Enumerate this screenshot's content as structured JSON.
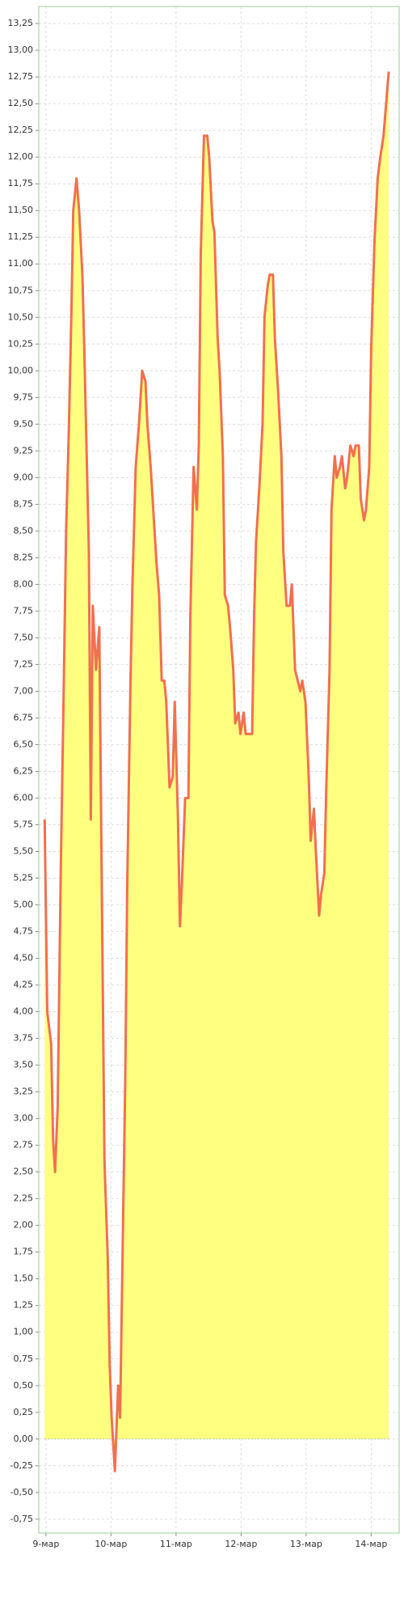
{
  "chart_data": {
    "type": "area",
    "x": [
      -0.02,
      0.02,
      0.08,
      0.11,
      0.14,
      0.18,
      0.23,
      0.27,
      0.31,
      0.35,
      0.39,
      0.42,
      0.47,
      0.51,
      0.56,
      0.59,
      0.66,
      0.69,
      0.72,
      0.77,
      0.82,
      0.85,
      0.9,
      0.95,
      0.98,
      1.01,
      1.06,
      1.11,
      1.14,
      1.17,
      1.22,
      1.25,
      1.3,
      1.33,
      1.38,
      1.43,
      1.48,
      1.53,
      1.56,
      1.61,
      1.66,
      1.7,
      1.74,
      1.78,
      1.82,
      1.85,
      1.9,
      1.95,
      1.98,
      2.03,
      2.06,
      2.09,
      2.14,
      2.19,
      2.22,
      2.27,
      2.32,
      2.35,
      2.38,
      2.43,
      2.48,
      2.51,
      2.56,
      2.59,
      2.64,
      2.67,
      2.72,
      2.75,
      2.8,
      2.83,
      2.88,
      2.91,
      2.96,
      2.99,
      3.04,
      3.07,
      3.12,
      3.17,
      3.2,
      3.23,
      3.28,
      3.33,
      3.36,
      3.41,
      3.44,
      3.49,
      3.52,
      3.57,
      3.62,
      3.65,
      3.7,
      3.75,
      3.78,
      3.83,
      3.87,
      3.91,
      3.94,
      3.99,
      4.04,
      4.07,
      4.12,
      4.15,
      4.2,
      4.23,
      4.28,
      4.31,
      4.36,
      4.39,
      4.44,
      4.47,
      4.52,
      4.55,
      4.6,
      4.63,
      4.68,
      4.73,
      4.76,
      4.81,
      4.84,
      4.89,
      4.92,
      4.97,
      5.0,
      5.05,
      5.1,
      5.14,
      5.19,
      5.23,
      5.27
    ],
    "values": [
      5.8,
      4.0,
      3.7,
      2.8,
      2.5,
      3.1,
      5.4,
      6.9,
      8.5,
      9.4,
      10.5,
      11.5,
      11.8,
      11.5,
      10.9,
      10.2,
      8.3,
      5.8,
      7.8,
      7.2,
      7.6,
      5.7,
      2.6,
      1.7,
      0.7,
      0.2,
      -0.3,
      0.5,
      0.2,
      1.4,
      3.4,
      5.2,
      7.1,
      8.0,
      9.1,
      9.5,
      10.0,
      9.9,
      9.5,
      9.1,
      8.6,
      8.2,
      7.9,
      7.1,
      7.1,
      6.9,
      6.1,
      6.2,
      6.9,
      5.8,
      4.8,
      5.2,
      6.0,
      6.0,
      7.7,
      9.1,
      8.7,
      9.3,
      11.1,
      12.2,
      12.2,
      12.0,
      11.4,
      11.3,
      10.3,
      10.0,
      9.2,
      7.9,
      7.8,
      7.6,
      7.2,
      6.7,
      6.8,
      6.6,
      6.8,
      6.6,
      6.6,
      6.6,
      7.7,
      8.4,
      8.9,
      9.5,
      10.5,
      10.8,
      10.9,
      10.9,
      10.3,
      9.8,
      9.2,
      8.3,
      7.8,
      7.8,
      8.0,
      7.2,
      7.1,
      7.0,
      7.1,
      6.9,
      6.2,
      5.6,
      5.9,
      5.5,
      4.9,
      5.1,
      5.3,
      6.1,
      7.2,
      8.7,
      9.2,
      9.0,
      9.1,
      9.2,
      8.9,
      9.0,
      9.3,
      9.2,
      9.3,
      9.3,
      8.8,
      8.6,
      8.7,
      9.1,
      10.2,
      11.2,
      11.8,
      12.0,
      12.2,
      12.5,
      12.8
    ],
    "color": "#f07050",
    "fill": "#ffff80",
    "xlim": [
      -0.11,
      5.43
    ],
    "xticks": [
      {
        "value": 0,
        "label": "9-мар"
      },
      {
        "value": 1,
        "label": "10-мар"
      },
      {
        "value": 2,
        "label": "11-мар"
      },
      {
        "value": 3,
        "label": "12-мар"
      },
      {
        "value": 4,
        "label": "13-мар"
      },
      {
        "value": 5,
        "label": "14-мар"
      }
    ],
    "ylim": [
      -0.88,
      13.41
    ],
    "yticks": [
      {
        "value": -0.75,
        "label": "-0,75"
      },
      {
        "value": -0.5,
        "label": "-0,50"
      },
      {
        "value": -0.25,
        "label": "-0,25"
      },
      {
        "value": 0,
        "label": "0,00"
      },
      {
        "value": 0.25,
        "label": "0,25"
      },
      {
        "value": 0.5,
        "label": "0,50"
      },
      {
        "value": 0.75,
        "label": "0,75"
      },
      {
        "value": 1,
        "label": "1,00"
      },
      {
        "value": 1.25,
        "label": "1,25"
      },
      {
        "value": 1.5,
        "label": "1,50"
      },
      {
        "value": 1.75,
        "label": "1,75"
      },
      {
        "value": 2,
        "label": "2,00"
      },
      {
        "value": 2.25,
        "label": "2,25"
      },
      {
        "value": 2.5,
        "label": "2,50"
      },
      {
        "value": 2.75,
        "label": "2,75"
      },
      {
        "value": 3,
        "label": "3,00"
      },
      {
        "value": 3.25,
        "label": "3,25"
      },
      {
        "value": 3.5,
        "label": "3,50"
      },
      {
        "value": 3.75,
        "label": "3,75"
      },
      {
        "value": 4,
        "label": "4,00"
      },
      {
        "value": 4.25,
        "label": "4,25"
      },
      {
        "value": 4.5,
        "label": "4,50"
      },
      {
        "value": 4.75,
        "label": "4,75"
      },
      {
        "value": 5,
        "label": "5,00"
      },
      {
        "value": 5.25,
        "label": "5,25"
      },
      {
        "value": 5.5,
        "label": "5,50"
      },
      {
        "value": 5.75,
        "label": "5,75"
      },
      {
        "value": 6,
        "label": "6,00"
      },
      {
        "value": 6.25,
        "label": "6,25"
      },
      {
        "value": 6.5,
        "label": "6,50"
      },
      {
        "value": 6.75,
        "label": "6,75"
      },
      {
        "value": 7,
        "label": "7,00"
      },
      {
        "value": 7.25,
        "label": "7,25"
      },
      {
        "value": 7.5,
        "label": "7,50"
      },
      {
        "value": 7.75,
        "label": "7,75"
      },
      {
        "value": 8,
        "label": "8,00"
      },
      {
        "value": 8.25,
        "label": "8,25"
      },
      {
        "value": 8.5,
        "label": "8,50"
      },
      {
        "value": 8.75,
        "label": "8,75"
      },
      {
        "value": 9,
        "label": "9,00"
      },
      {
        "value": 9.25,
        "label": "9,25"
      },
      {
        "value": 9.5,
        "label": "9,50"
      },
      {
        "value": 9.75,
        "label": "9,75"
      },
      {
        "value": 10,
        "label": "10,00"
      },
      {
        "value": 10.25,
        "label": "10,25"
      },
      {
        "value": 10.5,
        "label": "10,50"
      },
      {
        "value": 10.75,
        "label": "10,75"
      },
      {
        "value": 11,
        "label": "11,00"
      },
      {
        "value": 11.25,
        "label": "11,25"
      },
      {
        "value": 11.5,
        "label": "11,50"
      },
      {
        "value": 11.75,
        "label": "11,75"
      },
      {
        "value": 12,
        "label": "12,00"
      },
      {
        "value": 12.25,
        "label": "12,25"
      },
      {
        "value": 12.5,
        "label": "12,50"
      },
      {
        "value": 12.75,
        "label": "12,75"
      },
      {
        "value": 13,
        "label": "13,00"
      },
      {
        "value": 13.25,
        "label": "13,25"
      }
    ],
    "grid": true
  }
}
